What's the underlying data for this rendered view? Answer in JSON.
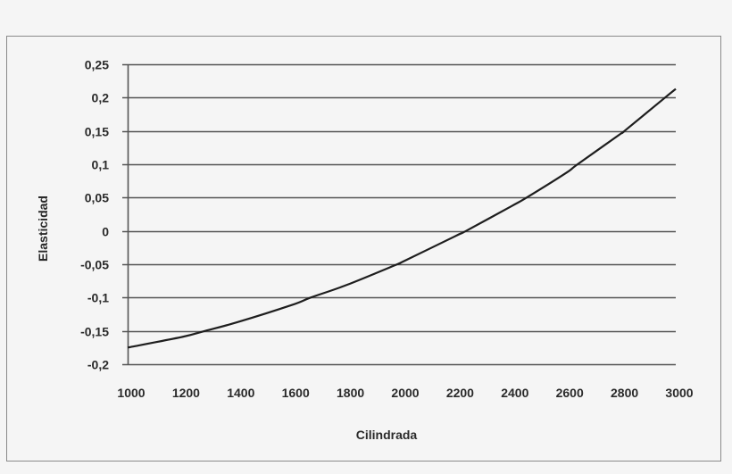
{
  "chart_data": {
    "type": "line",
    "title": "",
    "xlabel": "Cilindrada",
    "ylabel": "Elasticidad",
    "xlim": [
      1000,
      3000
    ],
    "ylim": [
      -0.2,
      0.25
    ],
    "x_ticks": [
      1000,
      1200,
      1400,
      1600,
      1800,
      2000,
      2200,
      2400,
      2600,
      2800,
      3000
    ],
    "x_tick_labels": [
      "1000",
      "1200",
      "1400",
      "1600",
      "1800",
      "2000",
      "2200",
      "2400",
      "2600",
      "2800",
      "3000"
    ],
    "y_ticks": [
      0.25,
      0.2,
      0.15,
      0.1,
      0.05,
      0,
      -0.05,
      -0.1,
      -0.15,
      -0.2
    ],
    "y_tick_labels": [
      "0,25",
      "0,2",
      "0,15",
      "0,1",
      "0,05",
      "0",
      "-0,05",
      "-0,1",
      "-0,15",
      "-0,2"
    ],
    "grid": "horizontal",
    "legend": null,
    "series": [
      {
        "name": "Elasticidad",
        "color": "#1e1e1e",
        "x": [
          1000,
          1200,
          1283,
          1400,
          1600,
          1668,
          1800,
          1984,
          2000,
          2200,
          2235,
          2400,
          2456,
          2600,
          2642,
          2800,
          2813,
          2961,
          3000
        ],
        "y": [
          -0.175,
          -0.159,
          -0.15,
          -0.137,
          -0.111,
          -0.1,
          -0.081,
          -0.05,
          -0.047,
          -0.007,
          0.0,
          0.037,
          0.05,
          0.087,
          0.1,
          0.146,
          0.15,
          0.2,
          0.213
        ]
      }
    ]
  },
  "colors": {
    "background": "#f5f5f5",
    "frame": "#8a8a8a",
    "grid": "#555555",
    "axis": "#555555",
    "line": "#1e1e1e",
    "text": "#2a2a2a"
  }
}
